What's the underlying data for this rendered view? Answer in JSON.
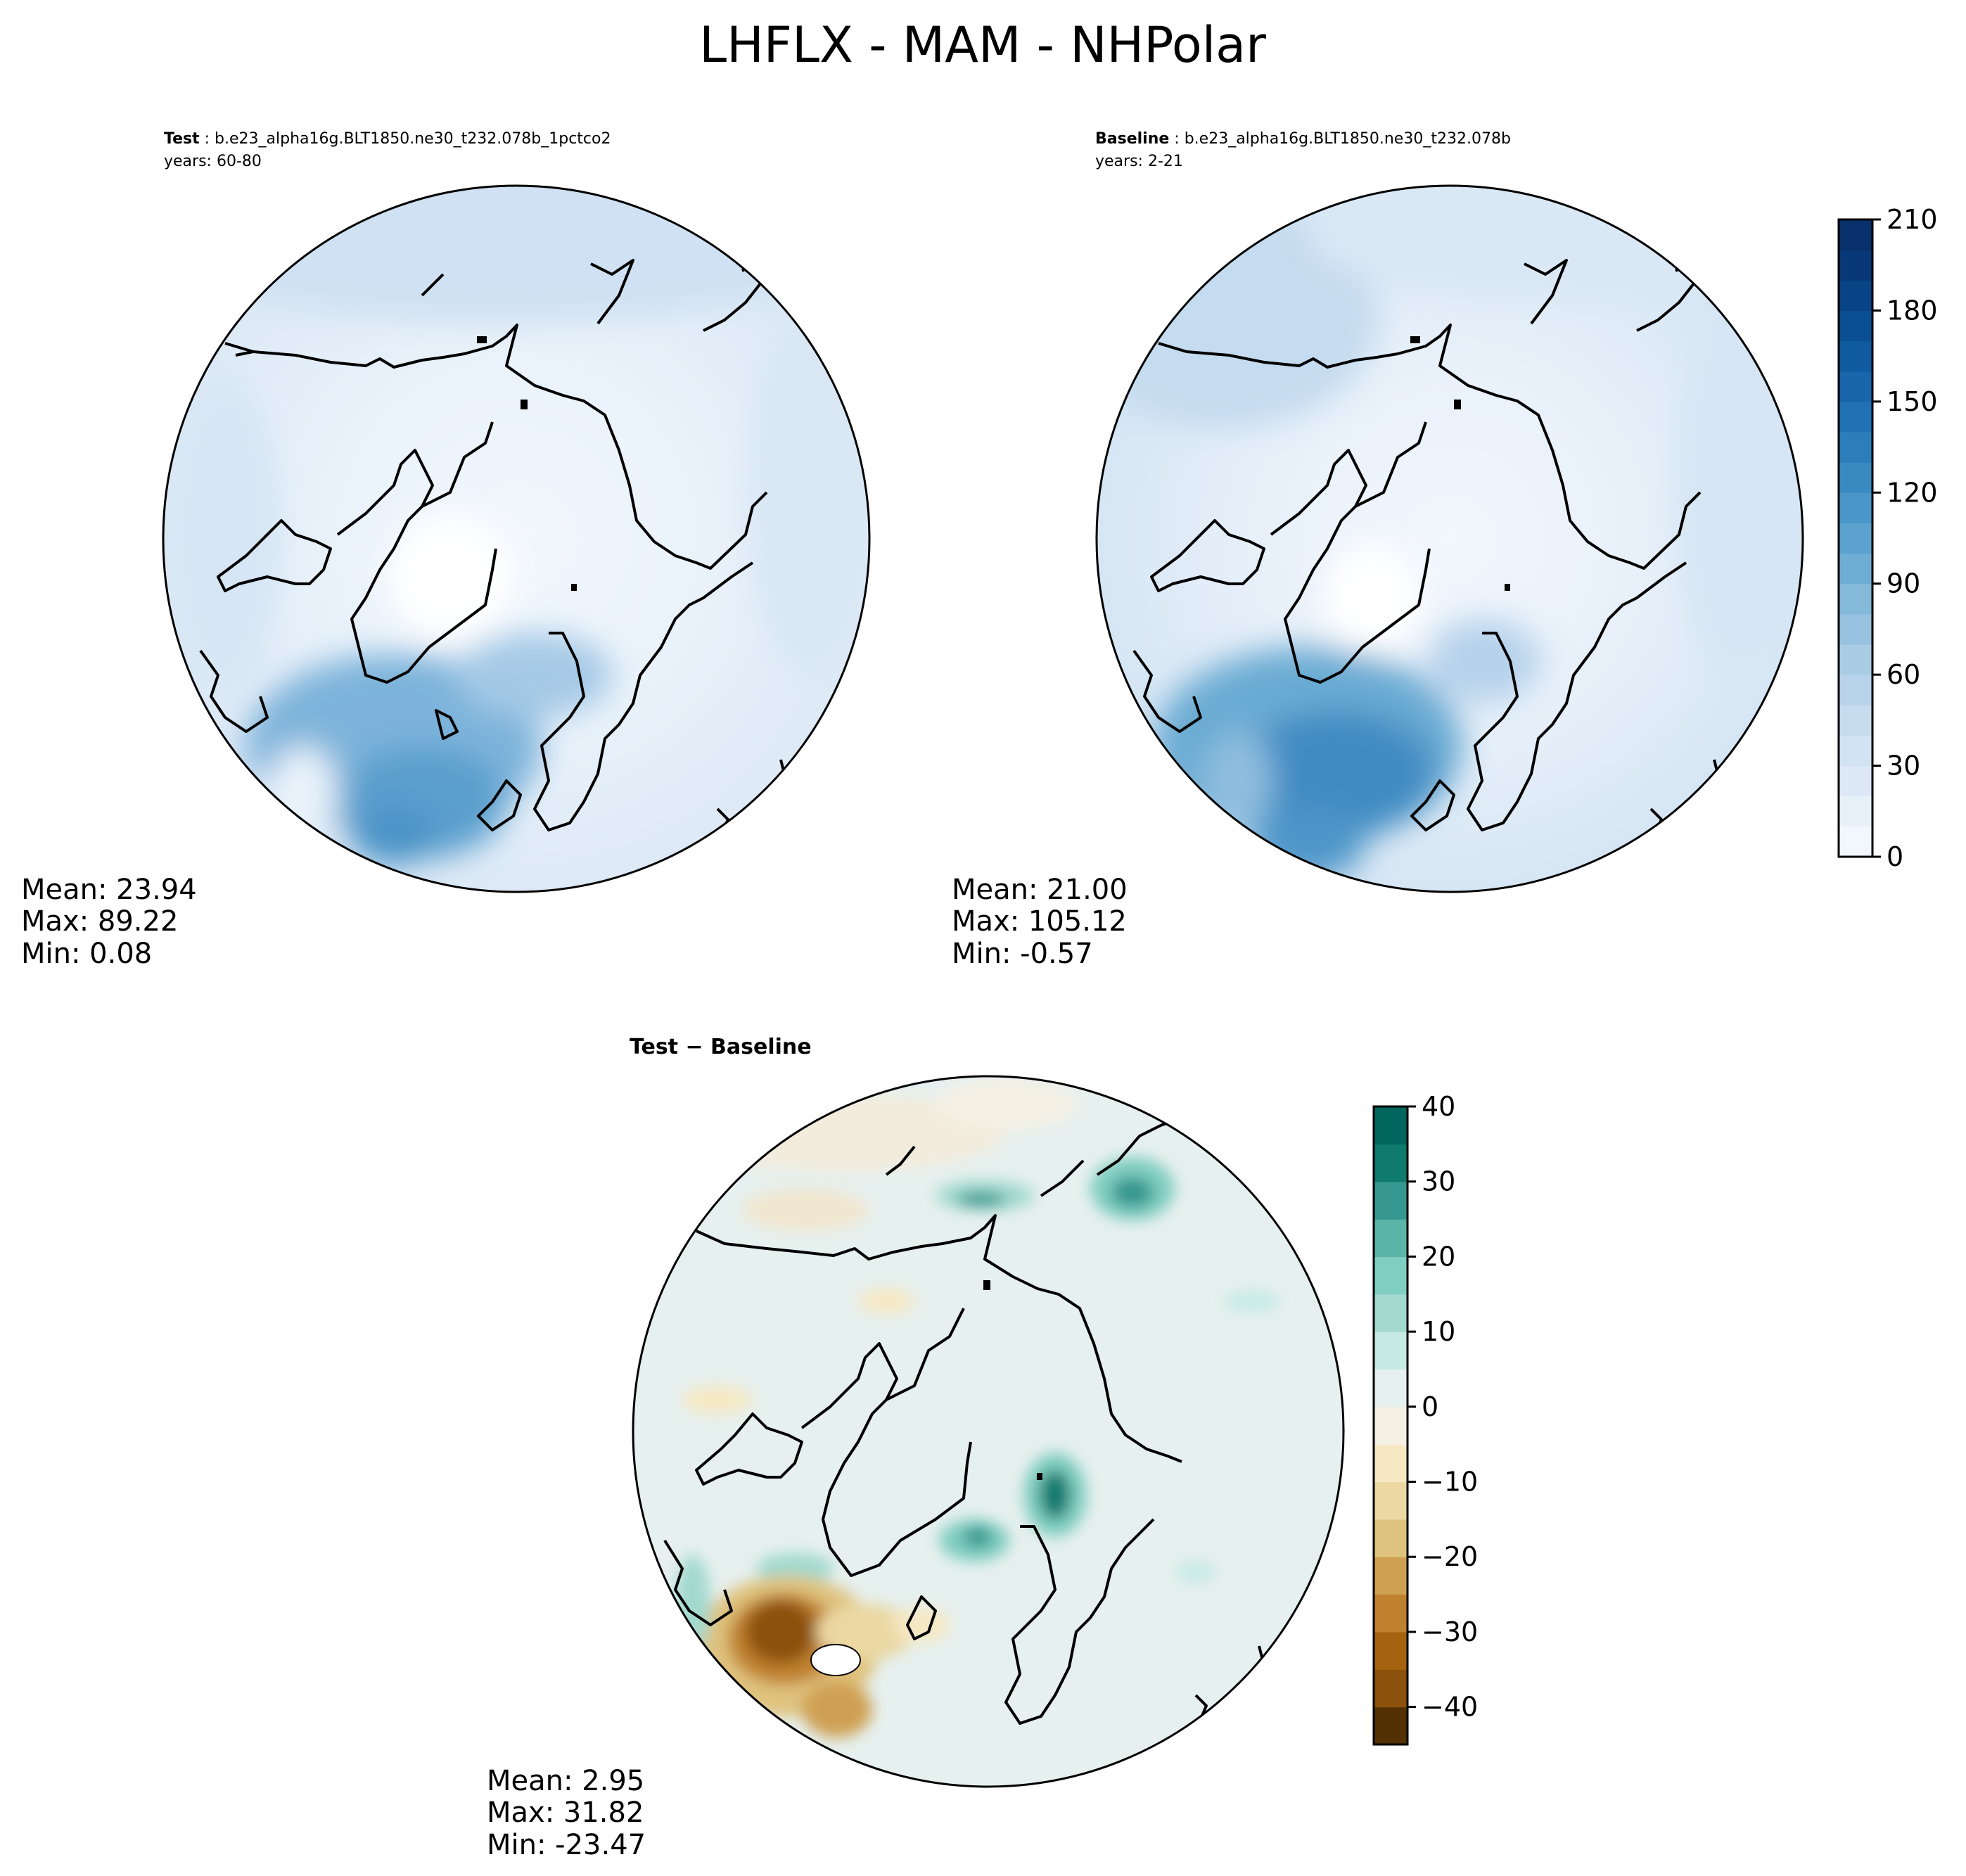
{
  "title": "LHFLX - MAM - NHPolar",
  "panels": [
    {
      "id": "test",
      "label": "Test",
      "case": "b.e23_alpha16g.BLT1850.ne30_t232.078b_1pctco2",
      "years": "years: 60-80",
      "stats": {
        "mean": "Mean: 23.94",
        "max": "Max: 89.22",
        "min": "Min:  0.08"
      }
    },
    {
      "id": "baseline",
      "label": "Baseline",
      "case": "b.e23_alpha16g.BLT1850.ne30_t232.078b",
      "years": "years: 2-21",
      "stats": {
        "mean": "Mean: 21.00",
        "max": "Max: 105.12",
        "min": "Min: -0.57"
      }
    },
    {
      "id": "diff",
      "label": "Test − Baseline",
      "stats": {
        "mean": "Mean:  2.95",
        "max": "Max: 31.82",
        "min": "Min: -23.47"
      }
    }
  ],
  "chart_data": [
    {
      "type": "heatmap",
      "projection": "north-polar-stereographic",
      "panel": "Test",
      "colormap": "Blues",
      "colorbar": {
        "range": [
          0,
          210
        ],
        "levels": [
          0,
          10,
          20,
          30,
          40,
          50,
          60,
          70,
          80,
          90,
          100,
          110,
          120,
          130,
          140,
          150,
          160,
          170,
          180,
          190,
          200,
          210
        ],
        "tick_labels": [
          "0",
          "30",
          "60",
          "90",
          "120",
          "150",
          "180",
          "210"
        ],
        "colors": [
          "#f2f7fd",
          "#e8f1fa",
          "#dde9f6",
          "#d2e3f3",
          "#c7dbef",
          "#b9d4ea",
          "#a9cde5",
          "#97c3e0",
          "#84b9da",
          "#6faed4",
          "#5ba2ce",
          "#4a96c8",
          "#3a8ac2",
          "#2c7ebb",
          "#2171b5",
          "#1865ab",
          "#105a9f",
          "#0b4f93",
          "#084386",
          "#083877",
          "#08306b"
        ]
      },
      "stats": {
        "mean": 23.94,
        "max": 89.22,
        "min": 0.08
      }
    },
    {
      "type": "heatmap",
      "projection": "north-polar-stereographic",
      "panel": "Baseline",
      "colormap": "Blues",
      "colorbar": "shared with Test",
      "stats": {
        "mean": 21.0,
        "max": 105.12,
        "min": -0.57
      }
    },
    {
      "type": "heatmap",
      "projection": "north-polar-stereographic",
      "panel": "Test − Baseline",
      "colormap": "BrBG",
      "colorbar": {
        "range": [
          -45,
          40
        ],
        "levels": [
          -45,
          -40,
          -35,
          -30,
          -25,
          -20,
          -15,
          -10,
          -5,
          0,
          5,
          10,
          15,
          20,
          25,
          30,
          35,
          40
        ],
        "tick_labels": [
          "−40",
          "−30",
          "−20",
          "−10",
          "0",
          "10",
          "20",
          "30",
          "40"
        ],
        "tick_values": [
          -40,
          -30,
          -20,
          -10,
          0,
          10,
          20,
          30,
          40
        ],
        "colors": [
          "#543005",
          "#8c510a",
          "#a5620f",
          "#bf812d",
          "#cfa052",
          "#dfc27d",
          "#ebd8a3",
          "#f6e8c3",
          "#f5f0e4",
          "#e6f0ee",
          "#c7eae5",
          "#a2d9cf",
          "#80cdc1",
          "#5ab4a8",
          "#35978f",
          "#0f7a6e",
          "#01665e"
        ]
      },
      "stats": {
        "mean": 2.95,
        "max": 31.82,
        "min": -23.47
      }
    }
  ]
}
